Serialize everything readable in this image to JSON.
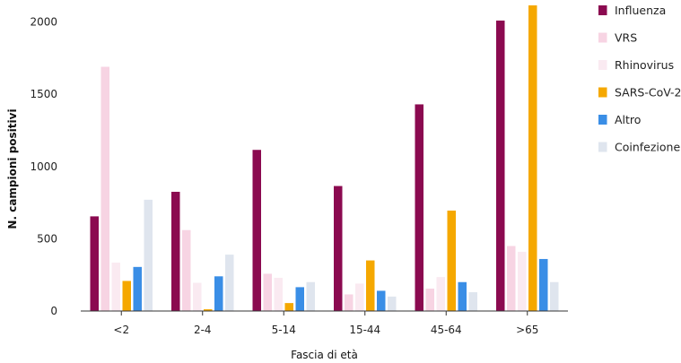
{
  "chart_data": {
    "type": "bar",
    "title": "",
    "xlabel": "Fascia di età",
    "ylabel": "N. campioni positivi",
    "ylim": [
      0,
      2100
    ],
    "yticks": [
      0,
      500,
      1000,
      1500,
      2000
    ],
    "grid": false,
    "legend_position": "right",
    "categories": [
      "<2",
      "2-4",
      "5-14",
      "15-44",
      "45-64",
      ">65"
    ],
    "series": [
      {
        "name": "Influenza",
        "color": "#8b0a50",
        "values": [
          655,
          825,
          1115,
          865,
          1430,
          2010
        ]
      },
      {
        "name": "VRS",
        "color": "#f7d4e3",
        "values": [
          1690,
          560,
          258,
          115,
          155,
          450
        ]
      },
      {
        "name": "Rhinovirus",
        "color": "#faeaf1",
        "values": [
          335,
          195,
          230,
          190,
          235,
          410
        ]
      },
      {
        "name": "SARS-CoV-2",
        "color": "#f5a800",
        "values": [
          208,
          12,
          55,
          350,
          695,
          2115
        ]
      },
      {
        "name": "Altro",
        "color": "#3a8ee6",
        "values": [
          305,
          240,
          165,
          140,
          200,
          360
        ]
      },
      {
        "name": "Coinfezione",
        "color": "#dfe5ee",
        "values": [
          770,
          390,
          200,
          100,
          130,
          200
        ]
      }
    ]
  }
}
